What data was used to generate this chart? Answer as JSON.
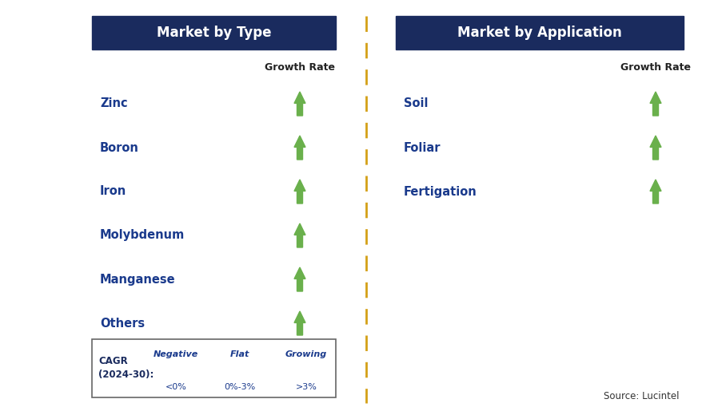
{
  "title_left": "Market by Type",
  "title_right": "Market by Application",
  "title_bg_color": "#1a2b5e",
  "title_text_color": "#ffffff",
  "left_items": [
    "Zinc",
    "Boron",
    "Iron",
    "Molybdenum",
    "Manganese",
    "Others"
  ],
  "right_items": [
    "Soil",
    "Foliar",
    "Fertigation"
  ],
  "item_text_color": "#1a3a8c",
  "growth_rate_label": "Growth Rate",
  "growth_rate_label_color": "#222222",
  "arrow_color_green": "#6ab04c",
  "arrow_color_red": "#bb0000",
  "arrow_color_yellow": "#f0a500",
  "divider_color": "#d4a017",
  "legend_label_color": "#1a2b5e",
  "source_text": "Source: Lucintel",
  "source_color": "#333333",
  "bg_color": "#ffffff",
  "fig_width": 8.79,
  "fig_height": 5.15,
  "dpi": 100
}
